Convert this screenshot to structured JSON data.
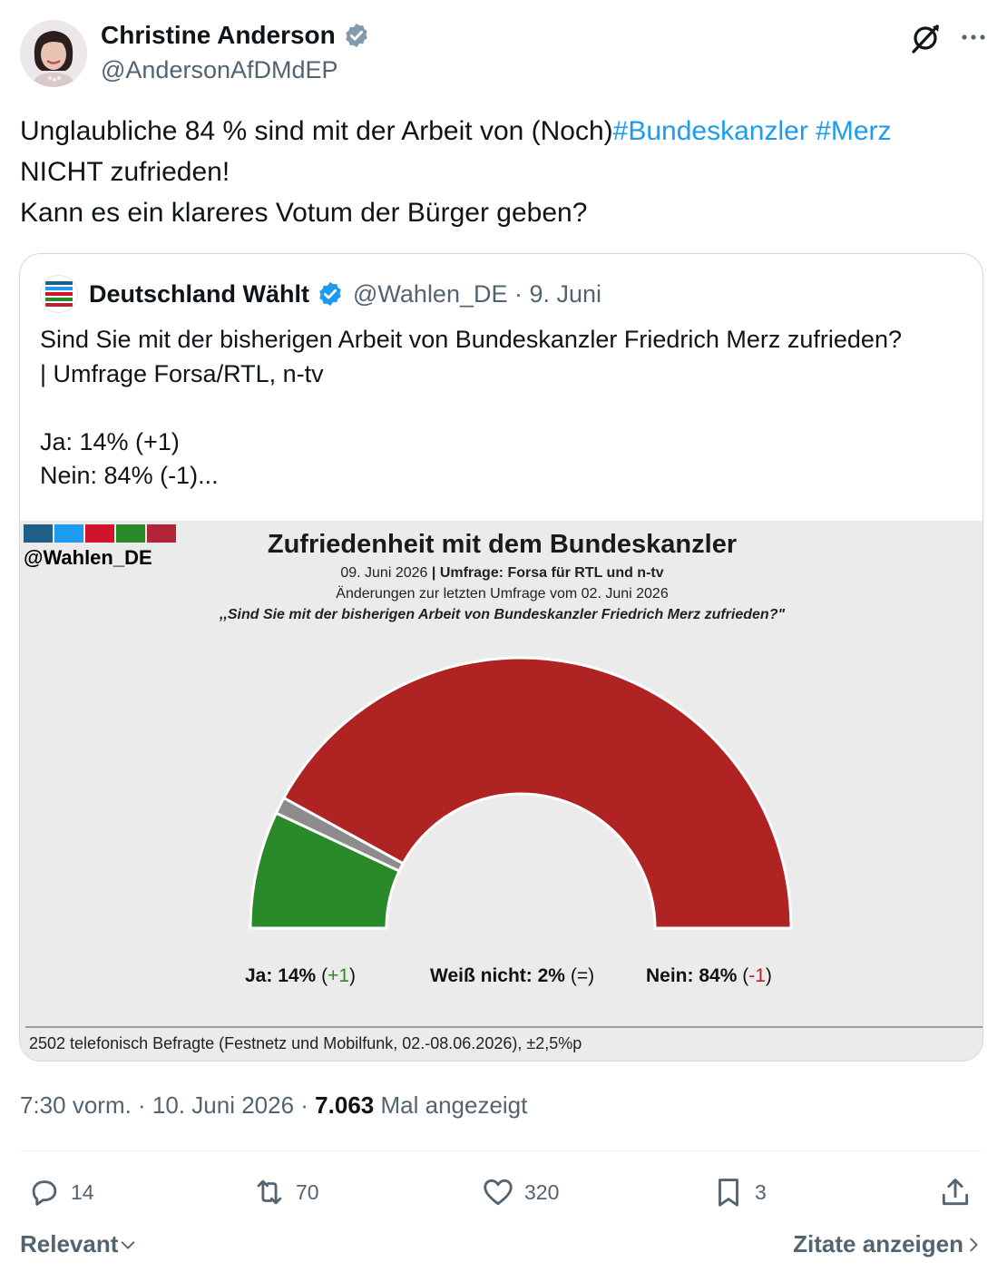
{
  "author": {
    "name": "Christine Anderson",
    "handle": "@AndersonAfDMdEP",
    "verified_color": "#829aab"
  },
  "tweet": {
    "line1_prefix": "Unglaubliche 84 % sind mit der Arbeit von (Noch)",
    "hashtag1": "#Bundeskanzler",
    "hashtag2": "#Merz",
    "line2": "NICHT zufrieden!",
    "line3": "Kann es ein klareres Votum der Bürger geben?",
    "hashtag_color": "#1d9bf0"
  },
  "quote": {
    "name": "Deutschland Wählt",
    "meta": "@Wahlen_DE · 9. Juni",
    "verified_color": "#1d9bf0",
    "text": "Sind Sie mit der bisherigen Arbeit von Bundeskanzler Friedrich Merz zufrieden?\n| Umfrage Forsa/RTL, n-tv\n\nJa: 14% (+1)\nNein: 84% (-1)..."
  },
  "graphic": {
    "logo_text": "@Wahlen_DE",
    "logo_colors": [
      "#1f5f86",
      "#1d9bf0",
      "#d0142b",
      "#2a8a2a",
      "#b3243a"
    ],
    "title": "Zufriedenheit mit dem Bundeskanzler",
    "sub_date": "09. Juni 2026",
    "sub_separator": "|",
    "sub_source": "Umfrage: Forsa für RTL und n-tv",
    "sub_changes": "Änderungen zur letzten Umfrage vom 02. Juni 2026",
    "sub_question": ",,Sind Sie mit der bisherigen Arbeit von Bundeskanzler Friedrich Merz zufrieden?\"",
    "footer": "2502 telefonisch Befragte (Festnetz und Mobilfunk, 02.-08.06.2026), ±2,5%p",
    "labels": {
      "ja_name": "Ja:",
      "ja_value": "14%",
      "ja_change_open": "(",
      "ja_change": "+1",
      "ja_change_close": ")",
      "wn_name": "Weiß nicht:",
      "wn_value": "2%",
      "wn_change": "(=)",
      "nein_name": "Nein:",
      "nein_value": "84%",
      "nein_change_open": "(",
      "nein_change": "-1",
      "nein_change_close": ")"
    }
  },
  "chart_data": {
    "type": "pie",
    "subtype": "semicircle",
    "title": "Zufriedenheit mit dem Bundeskanzler",
    "categories": [
      "Ja",
      "Weiß nicht",
      "Nein"
    ],
    "values": [
      14,
      2,
      84
    ],
    "changes": [
      "+1",
      "=",
      "-1"
    ],
    "colors": [
      "#2a8a2a",
      "#8c8c8c",
      "#b02323"
    ],
    "unit": "%"
  },
  "meta": {
    "time": "7:30 vorm. · 10. Juni 2026 · ",
    "views": "7.063",
    "views_label": "Mal angezeigt"
  },
  "actions": {
    "replies": "14",
    "reposts": "70",
    "likes": "320",
    "bookmarks": "3"
  },
  "footer_nav": {
    "sort": "Relevant",
    "quotes": "Zitate anzeigen"
  }
}
